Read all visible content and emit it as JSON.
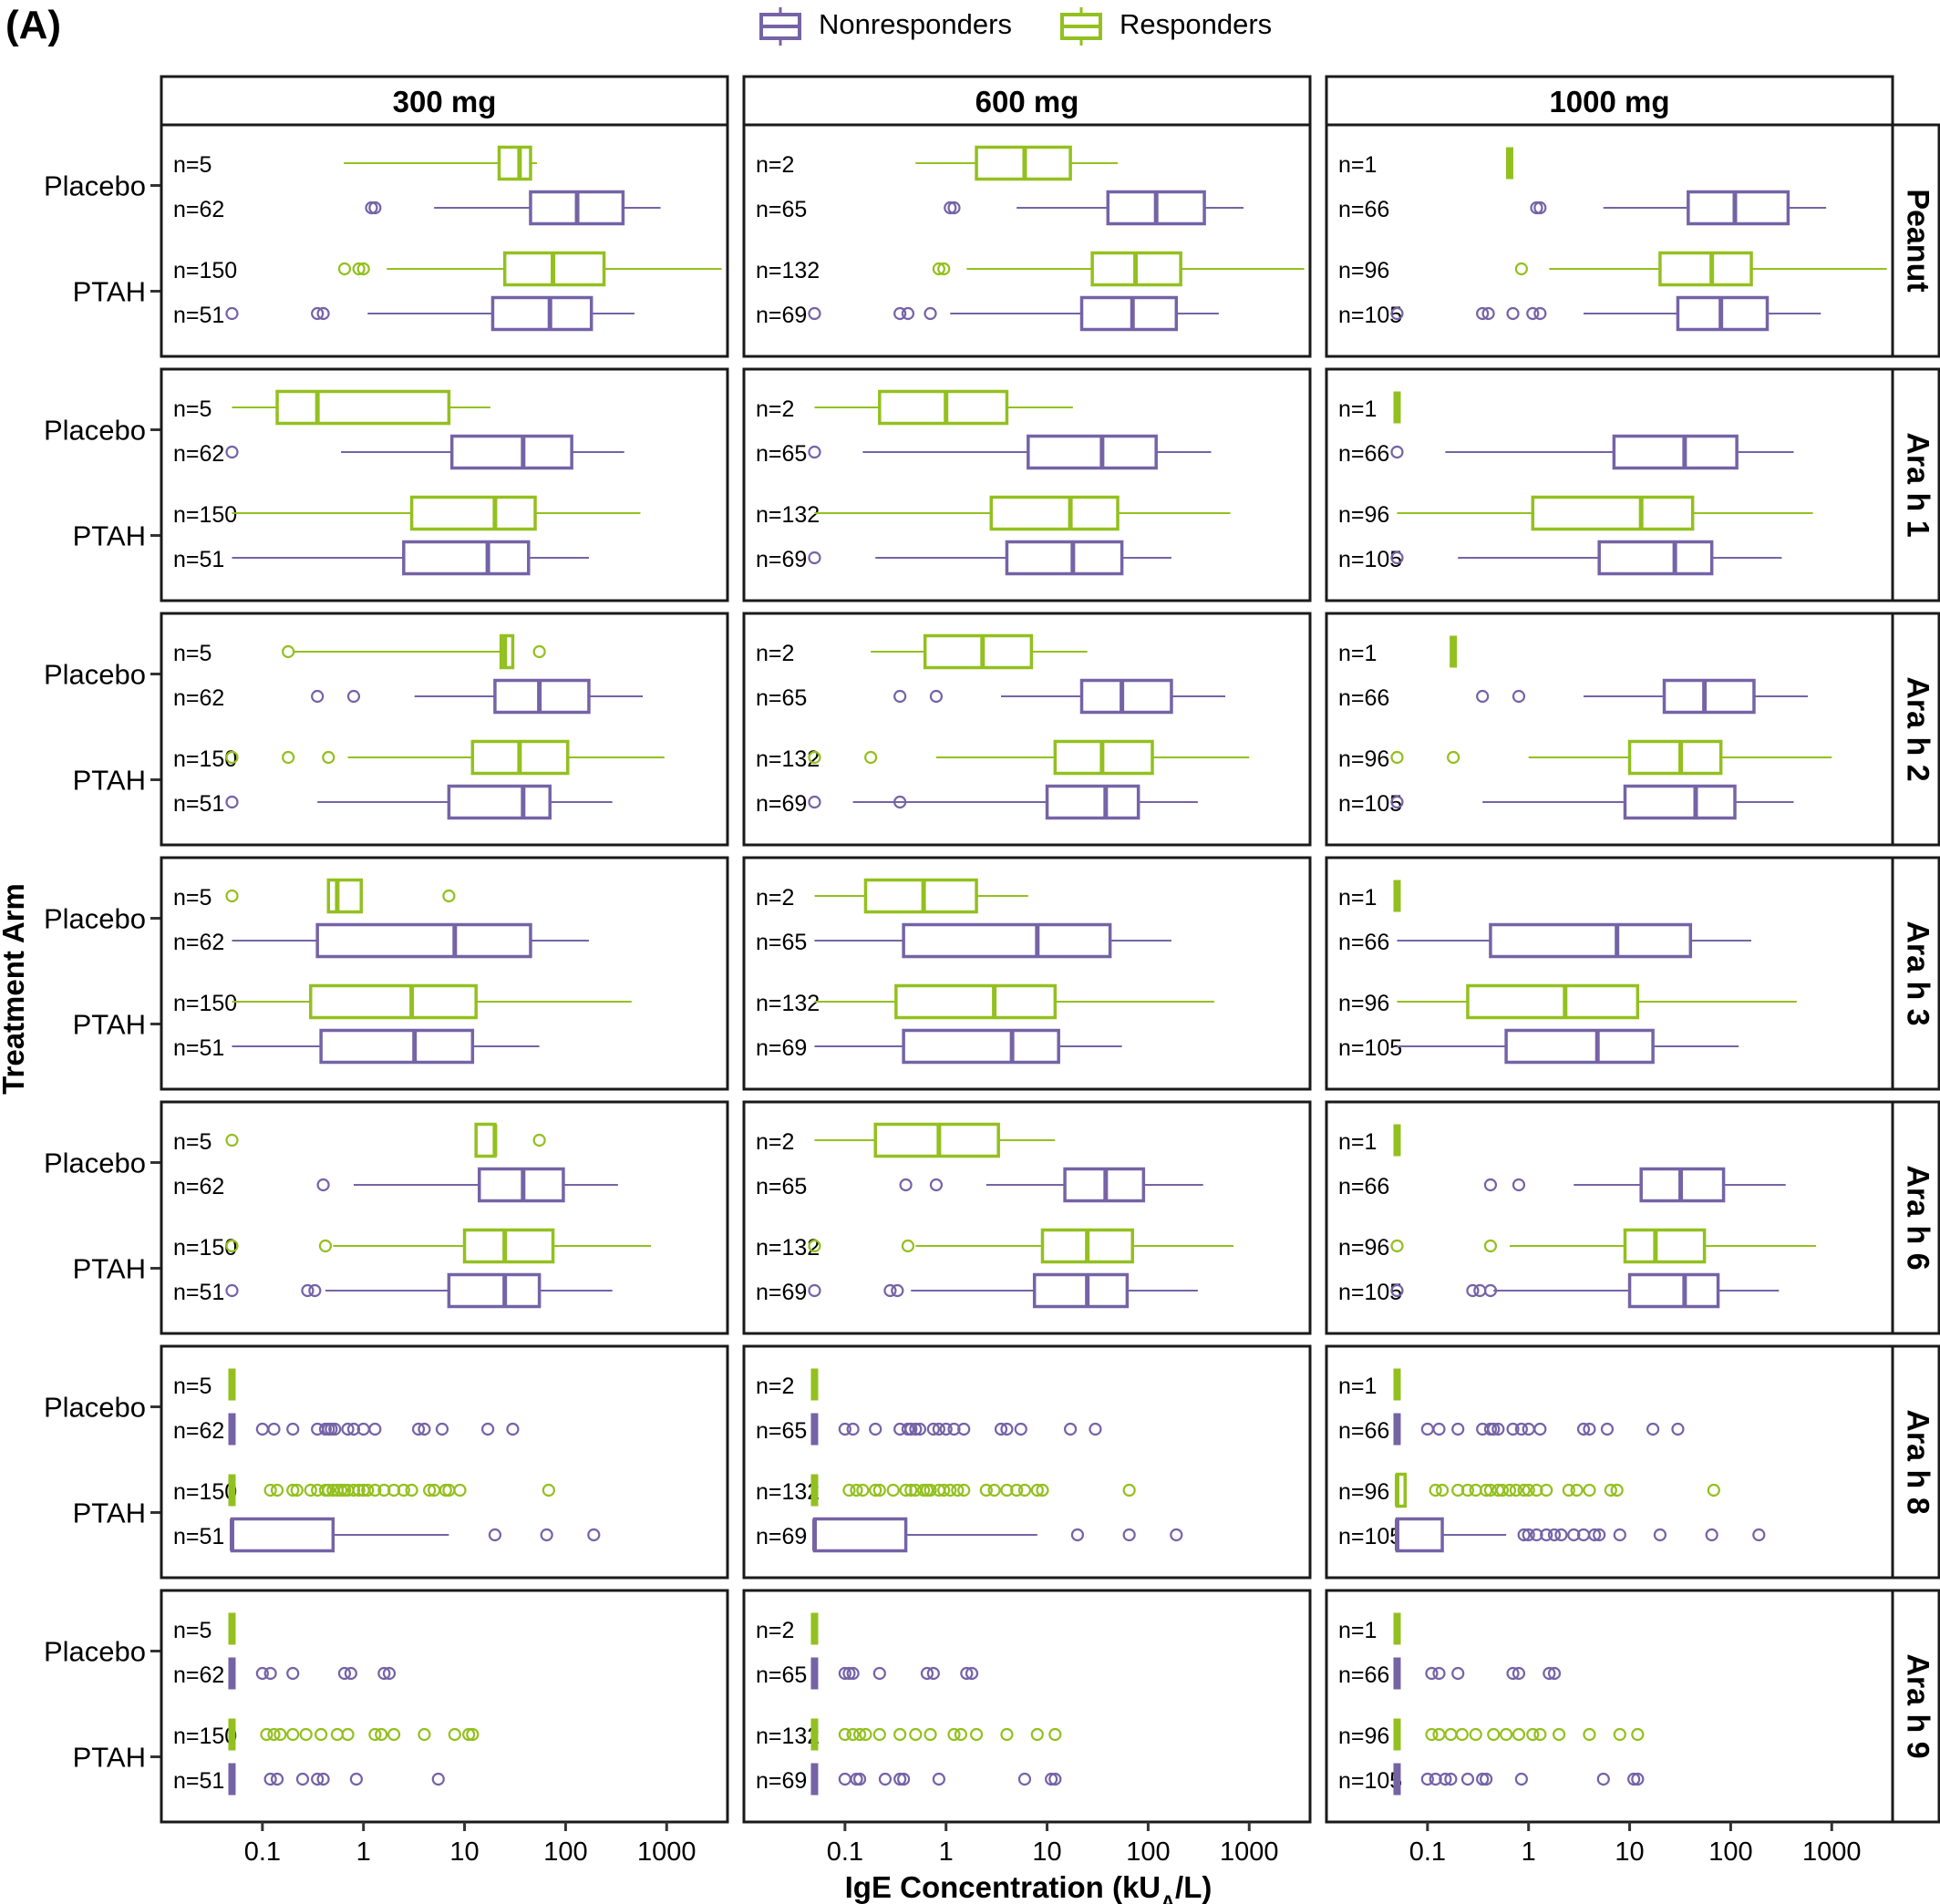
{
  "chart_data": {
    "type": "boxplot",
    "panel_label": "(A)",
    "legend": [
      {
        "name": "Nonresponders",
        "color": "#7563a6"
      },
      {
        "name": "Responders",
        "color": "#93c01f"
      }
    ],
    "xlabel": "IgE Concentration (kU",
    "xlabel_sub": "A",
    "xlabel_suffix": "/L)",
    "ylabel": "Treatment Arm",
    "x_scale": "log10",
    "xlim": [
      0.01,
      4000
    ],
    "x_ticks": [
      0.1,
      1,
      10,
      100,
      1000
    ],
    "x_tick_labels": [
      "0.1",
      "1",
      "10",
      "100",
      "1000"
    ],
    "arm_labels": [
      "Placebo",
      "PTAH"
    ],
    "columns": [
      "300 mg",
      "600 mg",
      "1000 mg"
    ],
    "rows": [
      "Peanut",
      "Ara h 1",
      "Ara h 2",
      "Ara h 3",
      "Ara h 6",
      "Ara h 8",
      "Ara h 9"
    ],
    "n_labels": [
      [
        "n=5",
        "n=62",
        "n=150",
        "n=51"
      ],
      [
        "n=2",
        "n=65",
        "n=132",
        "n=69"
      ],
      [
        "n=1",
        "n=66",
        "n=96",
        "n=105"
      ]
    ],
    "slot_groups": [
      "Responders",
      "Nonresponders",
      "Responders",
      "Nonresponders"
    ],
    "boxes": [
      [
        [
          [
            0.64,
            22,
            35,
            45,
            52,
            []
          ],
          [
            5,
            45,
            130,
            370,
            870,
            [
              1.2,
              1.3
            ]
          ],
          [
            1.7,
            25,
            75,
            240,
            3500,
            [
              0.65,
              0.9,
              1.0
            ]
          ],
          [
            1.1,
            19,
            70,
            180,
            480,
            [
              0.05,
              0.35,
              0.4
            ]
          ]
        ],
        [
          [
            0.05,
            0.14,
            0.35,
            7,
            18,
            []
          ],
          [
            0.6,
            7.5,
            38,
            115,
            380,
            [
              0.05
            ]
          ],
          [
            0.05,
            3,
            20,
            50,
            550,
            []
          ],
          [
            0.05,
            2.5,
            17,
            43,
            170,
            []
          ]
        ],
        [
          [
            0.2,
            23,
            25,
            30,
            30,
            [
              0.18,
              55
            ]
          ],
          [
            3.2,
            20,
            55,
            170,
            580,
            [
              0.35,
              0.8
            ]
          ],
          [
            0.7,
            12,
            35,
            105,
            950,
            [
              0.05,
              0.18,
              0.45
            ]
          ],
          [
            0.35,
            7,
            38,
            70,
            290,
            [
              0.05
            ]
          ]
        ],
        [
          [
            0.45,
            0.45,
            0.55,
            0.95,
            0.95,
            [
              0.05,
              7
            ]
          ],
          [
            0.05,
            0.35,
            8,
            45,
            170,
            []
          ],
          [
            0.05,
            0.3,
            3,
            13,
            450,
            []
          ],
          [
            0.05,
            0.38,
            3.2,
            12,
            55,
            []
          ]
        ],
        [
          [
            13,
            13,
            20,
            20,
            20,
            [
              0.05,
              55
            ]
          ],
          [
            0.8,
            14,
            38,
            95,
            330,
            [
              0.4
            ]
          ],
          [
            0.5,
            10,
            25,
            75,
            700,
            [
              0.05,
              0.42
            ]
          ],
          [
            0.42,
            7,
            25,
            55,
            290,
            [
              0.05,
              0.28,
              0.33
            ]
          ]
        ],
        [
          [
            0.05,
            0.05,
            0.05,
            0.05,
            0.05,
            []
          ],
          [
            0.05,
            0.05,
            0.05,
            0.05,
            0.05,
            [
              0.1,
              0.13,
              0.2,
              0.35,
              0.42,
              0.45,
              0.48,
              0.52,
              0.7,
              0.8,
              1,
              1.3,
              3.5,
              4,
              6,
              17,
              30
            ]
          ],
          [
            0.05,
            0.05,
            0.05,
            0.05,
            0.05,
            [
              0.12,
              0.14,
              0.2,
              0.22,
              0.3,
              0.35,
              0.42,
              0.45,
              0.5,
              0.55,
              0.6,
              0.65,
              0.7,
              0.8,
              0.9,
              1,
              1.1,
              1.3,
              1.6,
              2,
              2.5,
              3,
              4.5,
              5,
              6.5,
              7,
              9,
              68
            ]
          ],
          [
            0.05,
            0.05,
            0.05,
            0.5,
            7,
            [
              20,
              65,
              190
            ]
          ]
        ],
        [
          [
            0.05,
            0.05,
            0.05,
            0.05,
            0.05,
            []
          ],
          [
            0.05,
            0.05,
            0.05,
            0.05,
            0.05,
            [
              0.1,
              0.12,
              0.2,
              0.65,
              0.75,
              1.6,
              1.8
            ]
          ],
          [
            0.05,
            0.05,
            0.05,
            0.05,
            0.05,
            [
              0.11,
              0.13,
              0.15,
              0.2,
              0.27,
              0.38,
              0.55,
              0.7,
              1.3,
              1.5,
              2,
              4,
              8,
              11,
              12
            ]
          ],
          [
            0.05,
            0.05,
            0.05,
            0.05,
            0.05,
            [
              0.12,
              0.14,
              0.25,
              0.35,
              0.4,
              0.85,
              5.5
            ]
          ]
        ]
      ],
      [
        [
          [
            0.5,
            2,
            6,
            17,
            50,
            []
          ],
          [
            5,
            40,
            120,
            360,
            880,
            [
              1.1,
              1.2
            ]
          ],
          [
            1.6,
            28,
            75,
            210,
            3500,
            [
              0.85,
              0.95
            ]
          ],
          [
            1.1,
            22,
            70,
            190,
            500,
            [
              0.05,
              0.35,
              0.42,
              0.7
            ]
          ]
        ],
        [
          [
            0.05,
            0.22,
            1,
            4,
            18,
            []
          ],
          [
            0.15,
            6.5,
            35,
            120,
            420,
            [
              0.05
            ]
          ],
          [
            0.05,
            2.8,
            17,
            50,
            650,
            []
          ],
          [
            0.2,
            4,
            18,
            55,
            170,
            [
              0.05
            ]
          ]
        ],
        [
          [
            0.18,
            0.62,
            2.3,
            7,
            25,
            []
          ],
          [
            3.5,
            22,
            55,
            170,
            580,
            [
              0.35,
              0.8
            ]
          ],
          [
            0.8,
            12,
            35,
            110,
            1000,
            [
              0.05,
              0.18
            ]
          ],
          [
            0.12,
            10,
            38,
            80,
            310,
            [
              0.05,
              0.35
            ]
          ]
        ],
        [
          [
            0.05,
            0.16,
            0.6,
            2,
            6.5,
            []
          ],
          [
            0.05,
            0.38,
            8,
            42,
            170,
            []
          ],
          [
            0.05,
            0.32,
            3,
            12,
            450,
            []
          ],
          [
            0.05,
            0.38,
            4.5,
            13,
            55,
            []
          ]
        ],
        [
          [
            0.05,
            0.2,
            0.85,
            3.3,
            12,
            []
          ],
          [
            2.5,
            15,
            38,
            90,
            350,
            [
              0.4,
              0.8
            ]
          ],
          [
            0.5,
            9,
            25,
            70,
            700,
            [
              0.05,
              0.42
            ]
          ],
          [
            0.45,
            7.5,
            25,
            62,
            310,
            [
              0.05,
              0.28,
              0.33
            ]
          ]
        ],
        [
          [
            0.05,
            0.05,
            0.05,
            0.05,
            0.05,
            []
          ],
          [
            0.05,
            0.05,
            0.05,
            0.05,
            0.05,
            [
              0.1,
              0.12,
              0.2,
              0.35,
              0.42,
              0.45,
              0.5,
              0.55,
              0.75,
              0.85,
              1,
              1.2,
              1.5,
              3.5,
              4,
              5.5,
              17,
              30
            ]
          ],
          [
            0.05,
            0.05,
            0.05,
            0.05,
            0.05,
            [
              0.11,
              0.13,
              0.15,
              0.2,
              0.22,
              0.3,
              0.4,
              0.45,
              0.5,
              0.6,
              0.65,
              0.7,
              0.85,
              0.95,
              1.1,
              1.3,
              1.5,
              2.5,
              3,
              4,
              5,
              6,
              8,
              9,
              65
            ]
          ],
          [
            0.05,
            0.05,
            0.05,
            0.4,
            8,
            [
              20,
              65,
              190
            ]
          ]
        ],
        [
          [
            0.05,
            0.05,
            0.05,
            0.05,
            0.05,
            []
          ],
          [
            0.05,
            0.05,
            0.05,
            0.05,
            0.05,
            [
              0.1,
              0.11,
              0.12,
              0.22,
              0.65,
              0.75,
              1.6,
              1.8
            ]
          ],
          [
            0.05,
            0.05,
            0.05,
            0.05,
            0.05,
            [
              0.1,
              0.12,
              0.14,
              0.16,
              0.22,
              0.35,
              0.5,
              0.7,
              1.2,
              1.4,
              2,
              4,
              8,
              12
            ]
          ],
          [
            0.05,
            0.05,
            0.05,
            0.05,
            0.05,
            [
              0.1,
              0.13,
              0.14,
              0.25,
              0.35,
              0.38,
              0.85,
              6,
              11,
              12
            ]
          ]
        ]
      ],
      [
        [
          [
            0.65,
            0.65,
            0.65,
            0.65,
            0.65,
            []
          ],
          [
            5.5,
            38,
            110,
            370,
            880,
            [
              1.2,
              1.3
            ]
          ],
          [
            1.6,
            20,
            65,
            160,
            3500,
            [
              0.85
            ]
          ],
          [
            3.5,
            30,
            80,
            230,
            780,
            [
              0.05,
              0.35,
              0.4,
              0.7,
              1.1,
              1.3
            ]
          ]
        ],
        [
          [
            0.05,
            0.05,
            0.05,
            0.05,
            0.05,
            []
          ],
          [
            0.15,
            7,
            35,
            115,
            420,
            [
              0.05
            ]
          ],
          [
            0.05,
            1.1,
            13,
            42,
            650,
            []
          ],
          [
            0.2,
            5,
            28,
            65,
            320,
            [
              0.05
            ]
          ]
        ],
        [
          [
            0.18,
            0.18,
            0.18,
            0.18,
            0.18,
            []
          ],
          [
            3.5,
            22,
            55,
            170,
            580,
            [
              0.35,
              0.8
            ]
          ],
          [
            1,
            10,
            32,
            80,
            1000,
            [
              0.05,
              0.18
            ]
          ],
          [
            0.35,
            9,
            45,
            110,
            420,
            [
              0.05
            ]
          ]
        ],
        [
          [
            0.05,
            0.05,
            0.05,
            0.05,
            0.05,
            []
          ],
          [
            0.05,
            0.42,
            7.5,
            40,
            160,
            []
          ],
          [
            0.05,
            0.25,
            2.3,
            12,
            450,
            []
          ],
          [
            0.05,
            0.6,
            4.8,
            17,
            120,
            []
          ]
        ],
        [
          [
            0.05,
            0.05,
            0.05,
            0.05,
            0.05,
            []
          ],
          [
            2.8,
            13,
            32,
            85,
            350,
            [
              0.42,
              0.8
            ]
          ],
          [
            0.65,
            9,
            18,
            55,
            700,
            [
              0.05,
              0.42
            ]
          ],
          [
            0.45,
            10,
            35,
            75,
            300,
            [
              0.05,
              0.28,
              0.33,
              0.42
            ]
          ]
        ],
        [
          [
            0.05,
            0.05,
            0.05,
            0.05,
            0.05,
            []
          ],
          [
            0.05,
            0.05,
            0.05,
            0.05,
            0.05,
            [
              0.1,
              0.13,
              0.2,
              0.35,
              0.42,
              0.45,
              0.5,
              0.7,
              0.85,
              1,
              1.3,
              3.5,
              4,
              6,
              17,
              30
            ]
          ],
          [
            0.05,
            0.05,
            0.05,
            0.06,
            0.06,
            [
              0.12,
              0.14,
              0.2,
              0.25,
              0.3,
              0.38,
              0.42,
              0.5,
              0.55,
              0.65,
              0.75,
              0.9,
              1,
              1.2,
              1.5,
              2.5,
              3,
              4,
              6.5,
              7.5,
              68
            ]
          ],
          [
            0.05,
            0.05,
            0.05,
            0.14,
            0.6,
            [
              0.9,
              1,
              1.2,
              1.5,
              1.8,
              2.1,
              2.8,
              3.5,
              4.5,
              5,
              8,
              20,
              65,
              190
            ]
          ]
        ],
        [
          [
            0.05,
            0.05,
            0.05,
            0.05,
            0.05,
            []
          ],
          [
            0.05,
            0.05,
            0.05,
            0.05,
            0.05,
            [
              0.11,
              0.13,
              0.2,
              0.7,
              0.8,
              1.6,
              1.8
            ]
          ],
          [
            0.05,
            0.05,
            0.05,
            0.05,
            0.05,
            [
              0.11,
              0.13,
              0.17,
              0.22,
              0.3,
              0.45,
              0.6,
              0.8,
              1.1,
              1.3,
              2,
              4,
              8,
              12
            ]
          ],
          [
            0.05,
            0.05,
            0.05,
            0.05,
            0.05,
            [
              0.1,
              0.12,
              0.15,
              0.17,
              0.25,
              0.35,
              0.38,
              0.85,
              5.5,
              11,
              12
            ]
          ]
        ]
      ]
    ]
  }
}
